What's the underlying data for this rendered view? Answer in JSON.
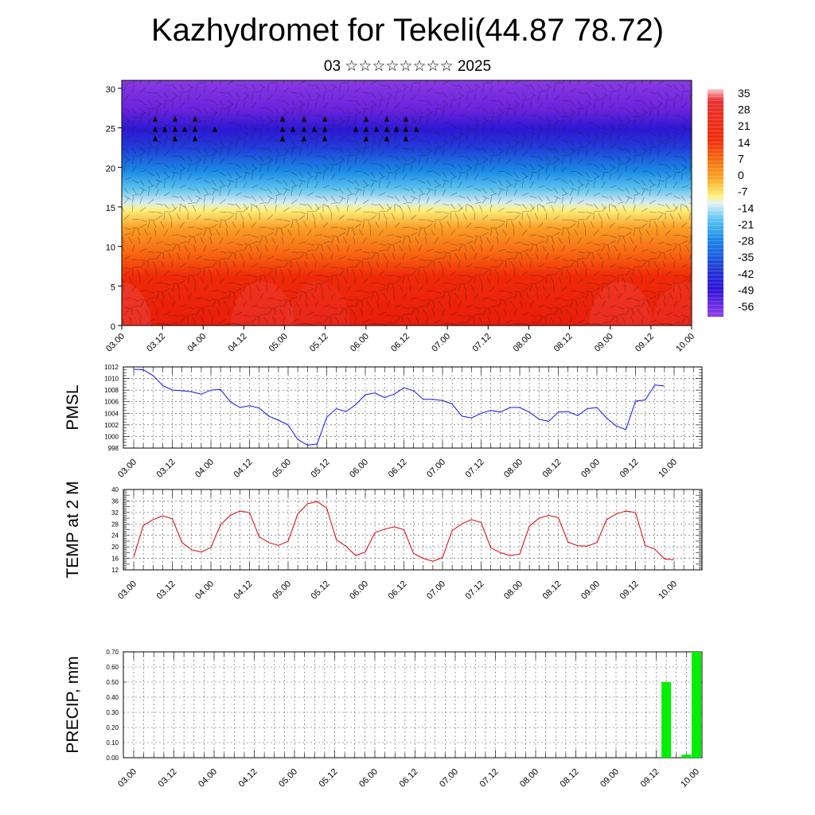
{
  "title": "Kazhydromet for Tekeli(44.87 78.72)",
  "subtitle": "03 ☆☆☆☆☆☆☆☆ 2025",
  "colors": {
    "pmsl_line": "#1010ff",
    "temp_line": "#e00000",
    "precip_bar": "#00ee00",
    "grid": "#555555"
  },
  "chart_data": [
    {
      "type": "heatmap",
      "name": "cross-section",
      "x_ticks": [
        "03.00",
        "03.12",
        "04.00",
        "04.12",
        "05.00",
        "05.12",
        "06.00",
        "06.12",
        "07.00",
        "07.12",
        "08.00",
        "08.12",
        "09.00",
        "09.12",
        "10.00"
      ],
      "y_ticks": [
        "0",
        "5",
        "10",
        "15",
        "20",
        "25",
        "30"
      ],
      "ylim": [
        0,
        31
      ],
      "colorbar_labels": [
        "35",
        "28",
        "21",
        "14",
        "7",
        "0",
        "-7",
        "-14",
        "-21",
        "-28",
        "-35",
        "-42",
        "-49",
        "-56"
      ],
      "layers": [
        {
          "range": [
            0,
            9
          ],
          "description": "warm red, +14 to +35"
        },
        {
          "range": [
            9,
            15
          ],
          "description": "orange to yellow, 0 to +14"
        },
        {
          "range": [
            15,
            19
          ],
          "description": "light blue, -14 to -35"
        },
        {
          "range": [
            19,
            26
          ],
          "description": "blue, -35 to -56"
        },
        {
          "range": [
            26,
            31
          ],
          "description": "violet, below -49"
        }
      ],
      "wind_vectors": true
    },
    {
      "type": "line",
      "name": "pmsl",
      "ylabel": "PMSL",
      "y_ticks": [
        "998",
        "1000",
        "1002",
        "1004",
        "1006",
        "1008",
        "1010",
        "1012"
      ],
      "ylim": [
        998,
        1012
      ],
      "x_ticks": [
        "03.00",
        "03.12",
        "04.00",
        "04.12",
        "05.00",
        "05.12",
        "06.00",
        "06.12",
        "07.00",
        "07.12",
        "08.00",
        "08.12",
        "09.00",
        "09.12",
        "10.00"
      ],
      "values": [
        1011.6,
        1011.5,
        1010.5,
        1008.8,
        1008.0,
        1007.9,
        1007.7,
        1007.3,
        1008.0,
        1008.1,
        1006.0,
        1005.0,
        1005.3,
        1004.9,
        1003.5,
        1002.8,
        1002.0,
        999.5,
        998.5,
        998.7,
        1003.3,
        1004.8,
        1004.3,
        1005.5,
        1007.2,
        1007.5,
        1006.7,
        1007.3,
        1008.4,
        1007.9,
        1006.4,
        1006.4,
        1006.2,
        1005.6,
        1003.5,
        1003.2,
        1004.0,
        1004.5,
        1004.2,
        1005.0,
        1005.0,
        1004.2,
        1003.0,
        1002.6,
        1004.2,
        1004.3,
        1003.6,
        1004.8,
        1005.0,
        1003.2,
        1001.8,
        1001.2,
        1006.1,
        1006.3,
        1008.9,
        1008.7
      ]
    },
    {
      "type": "line",
      "name": "temp",
      "ylabel": "TEMP at 2 M",
      "y_ticks": [
        "12",
        "16",
        "20",
        "24",
        "28",
        "32",
        "36",
        "40"
      ],
      "ylim": [
        12,
        40
      ],
      "x_ticks": [
        "03.00",
        "03.12",
        "04.00",
        "04.12",
        "05.00",
        "05.12",
        "06.00",
        "06.12",
        "07.00",
        "07.12",
        "08.00",
        "08.12",
        "09.00",
        "09.12",
        "10.00"
      ],
      "values": [
        16.5,
        27.5,
        29.5,
        30.8,
        29.8,
        21.5,
        19.0,
        18.2,
        19.8,
        27.7,
        31.0,
        32.5,
        32.0,
        23.5,
        21.5,
        20.5,
        22.0,
        31.5,
        35.0,
        35.8,
        33.5,
        22.5,
        20.2,
        17.0,
        18.2,
        25.0,
        26.2,
        27.0,
        26.0,
        17.7,
        16.0,
        15.0,
        16.3,
        25.7,
        28.0,
        29.5,
        28.5,
        19.7,
        18.0,
        17.0,
        17.5,
        27.2,
        30.0,
        31.0,
        30.2,
        21.7,
        20.4,
        20.3,
        21.5,
        29.5,
        31.5,
        32.5,
        32.0,
        20.5,
        19.2,
        15.8,
        15.5
      ]
    },
    {
      "type": "bar",
      "name": "precip",
      "ylabel": "PRECIP, mm",
      "y_ticks": [
        "0.00",
        "0.10",
        "0.20",
        "0.30",
        "0.40",
        "0.50",
        "0.60",
        "0.70"
      ],
      "ylim": [
        0,
        0.7
      ],
      "x_ticks": [
        "03.00",
        "03.12",
        "04.00",
        "04.12",
        "05.00",
        "05.12",
        "06.00",
        "06.12",
        "07.00",
        "07.12",
        "08.00",
        "08.12",
        "09.00",
        "09.12",
        "10.00"
      ],
      "bars": [
        {
          "t": 159,
          "value": 0.5
        },
        {
          "t": 165,
          "value": 0.02
        },
        {
          "t": 168,
          "value": 0.7
        }
      ]
    }
  ]
}
